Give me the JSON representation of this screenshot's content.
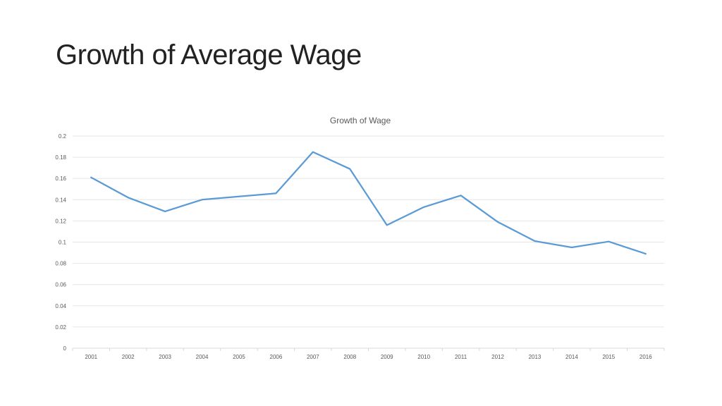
{
  "slide": {
    "title": "Growth of Average Wage"
  },
  "chart_data": {
    "type": "line",
    "title": "Growth of Wage",
    "xlabel": "",
    "ylabel": "",
    "categories": [
      "2001",
      "2002",
      "2003",
      "2004",
      "2005",
      "2006",
      "2007",
      "2008",
      "2009",
      "2010",
      "2011",
      "2012",
      "2013",
      "2014",
      "2015",
      "2016"
    ],
    "series": [
      {
        "values": [
          0.161,
          0.142,
          0.129,
          0.14,
          0.143,
          0.146,
          0.185,
          0.169,
          0.116,
          0.133,
          0.144,
          0.119,
          0.101,
          0.095,
          0.1005,
          0.089
        ],
        "color": "#5b9bd5"
      }
    ],
    "ylim": [
      0,
      0.2
    ],
    "yticks": [
      "0",
      "0.02",
      "0.04",
      "0.06",
      "0.08",
      "0.1",
      "0.12",
      "0.14",
      "0.16",
      "0.18",
      "0.2"
    ],
    "grid": true,
    "legend": "none"
  }
}
